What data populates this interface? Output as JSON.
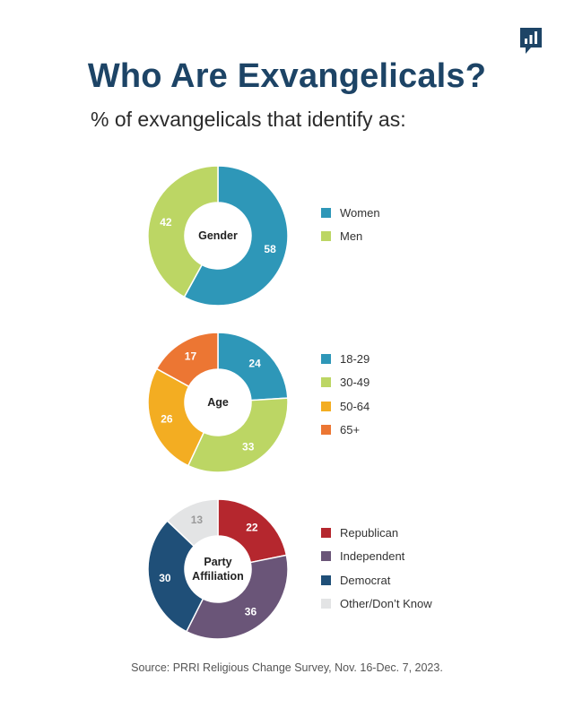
{
  "title": "Who Are Exvangelicals?",
  "subtitle": "% of exvangelicals that identify as:",
  "source": "Source: PRRI Religious Change Survey, Nov. 16-Dec. 7, 2023.",
  "logo_icon": "bar-chart-speech-bubble-icon",
  "chart_data": [
    {
      "type": "pie",
      "center_label": [
        "Gender"
      ],
      "categories": [
        "Women",
        "Men"
      ],
      "values": [
        58,
        42
      ],
      "colors": [
        "#2e97b8",
        "#bcd664"
      ],
      "label_colors": [
        "#ffffff",
        "#ffffff"
      ],
      "legend_position": "right"
    },
    {
      "type": "pie",
      "center_label": [
        "Age"
      ],
      "categories": [
        "18-29",
        "30-49",
        "50-64",
        "65+"
      ],
      "values": [
        24,
        33,
        26,
        17
      ],
      "colors": [
        "#2e97b8",
        "#bcd664",
        "#f3ad22",
        "#ec7633"
      ],
      "label_colors": [
        "#ffffff",
        "#ffffff",
        "#ffffff",
        "#ffffff"
      ],
      "legend_position": "right"
    },
    {
      "type": "pie",
      "center_label": [
        "Party",
        "Affiliation"
      ],
      "categories": [
        "Republican",
        "Independent",
        "Democrat",
        "Other/Don’t Know"
      ],
      "values": [
        22,
        36,
        30,
        13
      ],
      "colors": [
        "#b5272e",
        "#6a5578",
        "#1f4f78",
        "#e3e4e5"
      ],
      "label_colors": [
        "#ffffff",
        "#ffffff",
        "#ffffff",
        "#9a9a9a"
      ],
      "legend_position": "right"
    }
  ]
}
